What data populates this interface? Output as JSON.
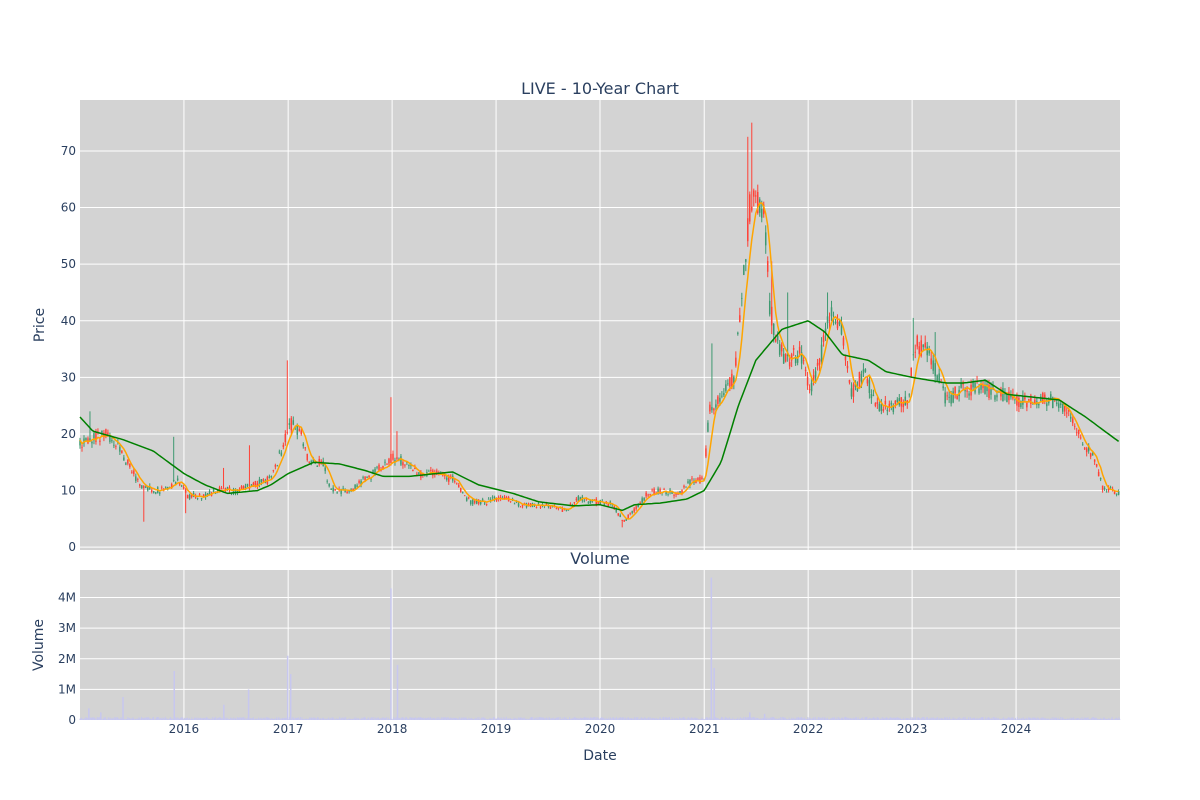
{
  "chart_data": {
    "type": "candlestick",
    "title": "LIVE - 10-Year Chart",
    "colors": {
      "plot_bg": "#d3d3d3",
      "grid": "#ffffff",
      "increasing": "#3d9970",
      "decreasing": "#ff4136",
      "ma_short": "#ffa500",
      "ma_long": "#008000",
      "volume": "#c7c7ef",
      "text": "#2a3f5f"
    },
    "price_panel": {
      "ylabel": "Price",
      "ylim": [
        -0.5,
        79
      ],
      "y_ticks": [
        0,
        10,
        20,
        30,
        40,
        50,
        60,
        70
      ],
      "price_anchors": [
        [
          "2015-01-05",
          18
        ],
        [
          "2015-02-10",
          19
        ],
        [
          "2015-04-01",
          20
        ],
        [
          "2015-05-15",
          18
        ],
        [
          "2015-06-15",
          15
        ],
        [
          "2015-08-01",
          11
        ],
        [
          "2015-09-15",
          10
        ],
        [
          "2015-11-01",
          10
        ],
        [
          "2015-12-10",
          12
        ],
        [
          "2016-01-15",
          9
        ],
        [
          "2016-03-01",
          9
        ],
        [
          "2016-05-01",
          10
        ],
        [
          "2016-07-01",
          10
        ],
        [
          "2016-09-01",
          11
        ],
        [
          "2016-11-01",
          12
        ],
        [
          "2016-12-15",
          18
        ],
        [
          "2017-01-05",
          22
        ],
        [
          "2017-02-15",
          20
        ],
        [
          "2017-03-15",
          15
        ],
        [
          "2017-05-01",
          15
        ],
        [
          "2017-06-01",
          10
        ],
        [
          "2017-08-01",
          10
        ],
        [
          "2017-10-01",
          12
        ],
        [
          "2017-11-20",
          14
        ],
        [
          "2018-01-05",
          16
        ],
        [
          "2018-02-15",
          15
        ],
        [
          "2018-04-01",
          13
        ],
        [
          "2018-06-01",
          13
        ],
        [
          "2018-08-01",
          12
        ],
        [
          "2018-10-01",
          8
        ],
        [
          "2018-12-01",
          8
        ],
        [
          "2019-01-15",
          9
        ],
        [
          "2019-04-01",
          7.5
        ],
        [
          "2019-07-01",
          7.3
        ],
        [
          "2019-09-01",
          6.5
        ],
        [
          "2019-10-15",
          8.5
        ],
        [
          "2020-01-01",
          8
        ],
        [
          "2020-02-15",
          7.5
        ],
        [
          "2020-03-25",
          4.5
        ],
        [
          "2020-05-01",
          6.5
        ],
        [
          "2020-06-15",
          9.5
        ],
        [
          "2020-08-01",
          10
        ],
        [
          "2020-10-01",
          9.5
        ],
        [
          "2020-11-15",
          11.5
        ],
        [
          "2020-12-31",
          12
        ],
        [
          "2021-01-20",
          25
        ],
        [
          "2021-03-01",
          26
        ],
        [
          "2021-04-15",
          30
        ],
        [
          "2021-05-15",
          45
        ],
        [
          "2021-06-10",
          60
        ],
        [
          "2021-07-15",
          62
        ],
        [
          "2021-08-01",
          58
        ],
        [
          "2021-08-20",
          42
        ],
        [
          "2021-09-15",
          36
        ],
        [
          "2021-10-15",
          33
        ],
        [
          "2021-12-01",
          34
        ],
        [
          "2022-01-10",
          28
        ],
        [
          "2022-02-15",
          34
        ],
        [
          "2022-03-20",
          42
        ],
        [
          "2022-05-01",
          38
        ],
        [
          "2022-06-01",
          27
        ],
        [
          "2022-07-15",
          31
        ],
        [
          "2022-09-01",
          25
        ],
        [
          "2022-11-01",
          25
        ],
        [
          "2022-12-20",
          26
        ],
        [
          "2023-01-10",
          36
        ],
        [
          "2023-03-01",
          34
        ],
        [
          "2023-05-01",
          26
        ],
        [
          "2023-07-01",
          28
        ],
        [
          "2023-09-01",
          28
        ],
        [
          "2023-11-01",
          27
        ],
        [
          "2024-01-01",
          26
        ],
        [
          "2024-03-01",
          26
        ],
        [
          "2024-05-01",
          26
        ],
        [
          "2024-07-01",
          24
        ],
        [
          "2024-08-15",
          19
        ],
        [
          "2024-10-01",
          16
        ],
        [
          "2024-11-01",
          10.5
        ],
        [
          "2024-12-31",
          9.5
        ]
      ],
      "spikes": [
        [
          "2015-02-05",
          24
        ],
        [
          "2015-11-25",
          19.5
        ],
        [
          "2016-05-20",
          14
        ],
        [
          "2016-08-15",
          18
        ],
        [
          "2016-12-30",
          33
        ],
        [
          "2017-12-28",
          26.5
        ],
        [
          "2018-01-20",
          20.5
        ],
        [
          "2021-01-25",
          36
        ],
        [
          "2021-06-05",
          72.5
        ],
        [
          "2021-06-20",
          75
        ],
        [
          "2021-08-25",
          50.5
        ],
        [
          "2021-10-20",
          45
        ],
        [
          "2022-03-10",
          45
        ],
        [
          "2023-01-05",
          40.5
        ],
        [
          "2023-03-25",
          38
        ]
      ],
      "dips": [
        [
          "2015-08-10",
          4.5
        ],
        [
          "2016-01-10",
          6
        ],
        [
          "2020-03-20",
          3.5
        ]
      ],
      "ma_long_anchors": [
        [
          "2015-01-01",
          23
        ],
        [
          "2015-02-15",
          20.5
        ],
        [
          "2015-06-01",
          19
        ],
        [
          "2015-09-15",
          17
        ],
        [
          "2016-01-01",
          13
        ],
        [
          "2016-03-15",
          11
        ],
        [
          "2016-06-01",
          9.5
        ],
        [
          "2016-09-15",
          10
        ],
        [
          "2016-11-01",
          11
        ],
        [
          "2017-01-01",
          13
        ],
        [
          "2017-04-01",
          15
        ],
        [
          "2017-07-01",
          14.7
        ],
        [
          "2017-10-01",
          13.5
        ],
        [
          "2017-12-01",
          12.5
        ],
        [
          "2018-03-01",
          12.5
        ],
        [
          "2018-08-01",
          13.3
        ],
        [
          "2018-11-01",
          11
        ],
        [
          "2019-03-01",
          9.5
        ],
        [
          "2019-06-01",
          8
        ],
        [
          "2019-10-01",
          7.3
        ],
        [
          "2020-01-01",
          7.5
        ],
        [
          "2020-03-20",
          6.5
        ],
        [
          "2020-05-01",
          7.5
        ],
        [
          "2020-08-01",
          7.8
        ],
        [
          "2020-11-01",
          8.5
        ],
        [
          "2021-01-01",
          10
        ],
        [
          "2021-03-01",
          15
        ],
        [
          "2021-05-01",
          25
        ],
        [
          "2021-07-01",
          33
        ],
        [
          "2021-10-01",
          38.5
        ],
        [
          "2022-01-01",
          40
        ],
        [
          "2022-03-01",
          38
        ],
        [
          "2022-05-01",
          34
        ],
        [
          "2022-08-01",
          33
        ],
        [
          "2022-10-01",
          31
        ],
        [
          "2023-01-01",
          30
        ],
        [
          "2023-05-01",
          29
        ],
        [
          "2023-07-01",
          29
        ],
        [
          "2023-09-15",
          29.5
        ],
        [
          "2023-12-01",
          27
        ],
        [
          "2024-03-01",
          26.5
        ],
        [
          "2024-06-01",
          26
        ],
        [
          "2024-09-01",
          23
        ],
        [
          "2024-12-31",
          18.5
        ]
      ]
    },
    "volume_panel": {
      "title": "Volume",
      "ylabel": "Volume",
      "ylim": [
        0,
        4900000
      ],
      "y_ticks": [
        0,
        1000000,
        2000000,
        3000000,
        4000000
      ],
      "y_tick_labels": [
        "0",
        "1M",
        "2M",
        "3M",
        "4M"
      ],
      "spikes": [
        [
          "2015-02-01",
          0.38
        ],
        [
          "2015-03-15",
          0.25
        ],
        [
          "2015-06-01",
          0.75
        ],
        [
          "2015-11-28",
          1.6
        ],
        [
          "2016-05-20",
          0.5
        ],
        [
          "2016-08-15",
          1.0
        ],
        [
          "2016-12-30",
          2.1
        ],
        [
          "2017-01-10",
          1.5
        ],
        [
          "2017-12-28",
          4.3
        ],
        [
          "2018-01-20",
          1.8
        ],
        [
          "2021-01-26",
          4.65
        ],
        [
          "2021-02-05",
          1.7
        ],
        [
          "2021-06-10",
          0.25
        ],
        [
          "2021-08-01",
          0.2
        ]
      ]
    },
    "x_axis": {
      "xlabel": "Date",
      "range": [
        "2015-01-01",
        "2024-12-31"
      ],
      "tick_labels": [
        "2016",
        "2017",
        "2018",
        "2019",
        "2020",
        "2021",
        "2022",
        "2023",
        "2024"
      ]
    }
  }
}
